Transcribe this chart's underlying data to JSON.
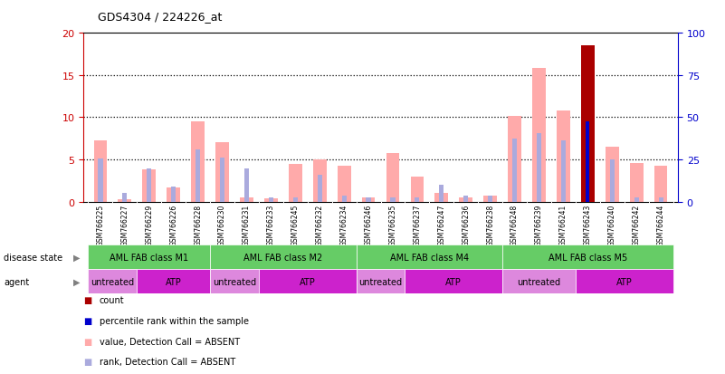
{
  "title": "GDS4304 / 224226_at",
  "samples": [
    "GSM766225",
    "GSM766227",
    "GSM766229",
    "GSM766226",
    "GSM766228",
    "GSM766230",
    "GSM766231",
    "GSM766233",
    "GSM766245",
    "GSM766232",
    "GSM766234",
    "GSM766246",
    "GSM766235",
    "GSM766237",
    "GSM766247",
    "GSM766236",
    "GSM766238",
    "GSM766248",
    "GSM766239",
    "GSM766241",
    "GSM766243",
    "GSM766240",
    "GSM766242",
    "GSM766244"
  ],
  "pink_values": [
    7.3,
    0.3,
    3.8,
    1.7,
    9.5,
    7.0,
    0.5,
    0.4,
    4.5,
    5.0,
    4.3,
    0.5,
    5.7,
    3.0,
    1.0,
    0.5,
    0.7,
    10.2,
    15.8,
    10.8,
    0.0,
    6.5,
    4.6,
    4.2
  ],
  "blue_values": [
    5.1,
    1.0,
    3.9,
    1.8,
    6.2,
    5.2,
    3.9,
    0.5,
    0.5,
    3.2,
    0.7,
    0.5,
    0.5,
    0.5,
    2.0,
    0.7,
    0.7,
    7.5,
    8.1,
    7.2,
    0.0,
    5.0,
    0.5,
    0.5
  ],
  "red_index": 20,
  "red_value": 18.5,
  "blue_dark_value": 9.5,
  "left_ylim": [
    0,
    20
  ],
  "right_ylim": [
    0,
    100
  ],
  "left_yticks": [
    0,
    5,
    10,
    15,
    20
  ],
  "right_yticks": [
    0,
    25,
    50,
    75,
    100
  ],
  "disease_state_groups": [
    {
      "label": "AML FAB class M1",
      "start": 0,
      "end": 5
    },
    {
      "label": "AML FAB class M2",
      "start": 5,
      "end": 11
    },
    {
      "label": "AML FAB class M4",
      "start": 11,
      "end": 17
    },
    {
      "label": "AML FAB class M5",
      "start": 17,
      "end": 24
    }
  ],
  "agent_groups": [
    {
      "label": "untreated",
      "start": 0,
      "end": 2
    },
    {
      "label": "ATP",
      "start": 2,
      "end": 5
    },
    {
      "label": "untreated",
      "start": 5,
      "end": 7
    },
    {
      "label": "ATP",
      "start": 7,
      "end": 11
    },
    {
      "label": "untreated",
      "start": 11,
      "end": 13
    },
    {
      "label": "ATP",
      "start": 13,
      "end": 17
    },
    {
      "label": "untreated",
      "start": 17,
      "end": 20
    },
    {
      "label": "ATP",
      "start": 20,
      "end": 24
    }
  ],
  "disease_color": "#66cc66",
  "untreated_color": "#dd88dd",
  "atp_color": "#cc22cc",
  "bar_width": 0.55,
  "pink_color": "#ffaaaa",
  "blue_color": "#aaaadd",
  "red_color": "#aa0000",
  "blue_dark_color": "#0000cc",
  "left_axis_color": "#cc0000",
  "right_axis_color": "#0000cc",
  "tick_bg_color": "#cccccc",
  "legend_items": [
    {
      "color": "#aa0000",
      "label": "count"
    },
    {
      "color": "#0000cc",
      "label": "percentile rank within the sample"
    },
    {
      "color": "#ffaaaa",
      "label": "value, Detection Call = ABSENT"
    },
    {
      "color": "#aaaadd",
      "label": "rank, Detection Call = ABSENT"
    }
  ]
}
